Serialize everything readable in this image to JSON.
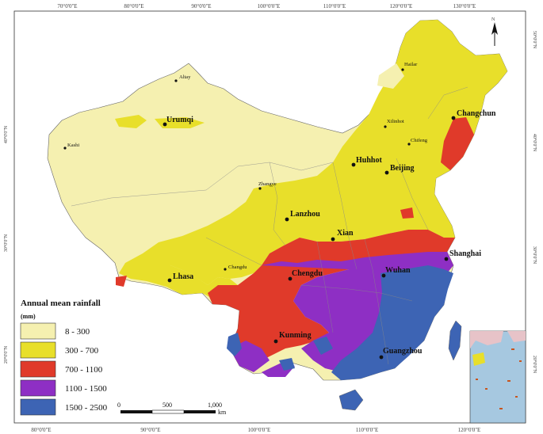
{
  "graticule": {
    "top": [
      "70°0'0\"E",
      "80°0'0\"E",
      "90°0'0\"E",
      "100°0'0\"E",
      "110°0'0\"E",
      "120°0'0\"E",
      "130°0'0\"E"
    ],
    "bottom": [
      "80°0'0\"E",
      "90°0'0\"E",
      "100°0'0\"E",
      "110°0'0\"E",
      "120°0'0\"E"
    ],
    "left": [
      "40°0'0\"N",
      "30°0'0\"N",
      "20°0'0\"N"
    ],
    "right": [
      "50°0'0\"N",
      "40°0'0\"N",
      "30°0'0\"N",
      "20°0'0\"N"
    ]
  },
  "north_arrow": "N",
  "cities": [
    {
      "name": "Altay",
      "major": false
    },
    {
      "name": "Urumqi",
      "major": true
    },
    {
      "name": "Kashi",
      "major": false
    },
    {
      "name": "Hailar",
      "major": false
    },
    {
      "name": "Changchun",
      "major": true
    },
    {
      "name": "Xilinhot",
      "major": false
    },
    {
      "name": "Chifeng",
      "major": false
    },
    {
      "name": "Huhhot",
      "major": true
    },
    {
      "name": "Beijing",
      "major": true
    },
    {
      "name": "Zhangye",
      "major": false
    },
    {
      "name": "Lanzhou",
      "major": true
    },
    {
      "name": "Xian",
      "major": true
    },
    {
      "name": "Shanghai",
      "major": true
    },
    {
      "name": "Changdu",
      "major": false
    },
    {
      "name": "Lhasa",
      "major": true
    },
    {
      "name": "Chengdu",
      "major": true
    },
    {
      "name": "Wuhan",
      "major": true
    },
    {
      "name": "Kunming",
      "major": true
    },
    {
      "name": "Guangzhou",
      "major": true
    }
  ],
  "legend": {
    "title": "Annual mean rainfall",
    "unit": "(mm)",
    "items": [
      {
        "label": "8 - 300",
        "color": "#f5f0b0"
      },
      {
        "label": "300 - 700",
        "color": "#e8df2a"
      },
      {
        "label": "700 - 1100",
        "color": "#e03a2a"
      },
      {
        "label": "1100 - 1500",
        "color": "#8e2fc4"
      },
      {
        "label": "1500 - 2500",
        "color": "#3d64b4"
      }
    ]
  },
  "scale_bar": {
    "labels": [
      "0",
      "500",
      "1,000"
    ],
    "unit": "km"
  }
}
